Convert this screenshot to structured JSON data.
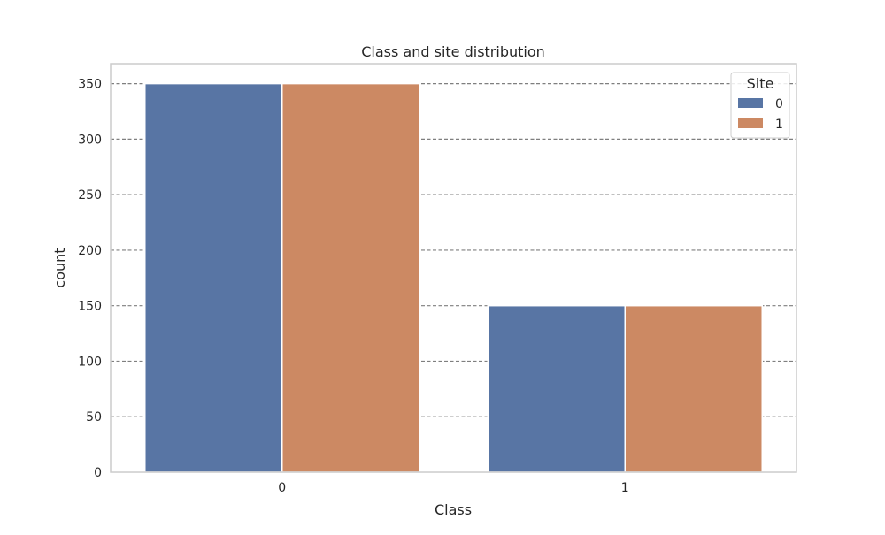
{
  "chart_data": {
    "type": "bar",
    "title": "Class and site distribution",
    "xlabel": "Class",
    "ylabel": "count",
    "categories": [
      "0",
      "1"
    ],
    "series": [
      {
        "name": "0",
        "values": [
          350,
          150
        ],
        "color": "#5875a4"
      },
      {
        "name": "1",
        "values": [
          350,
          150
        ],
        "color": "#cc8963"
      }
    ],
    "ylim": [
      0,
      368
    ],
    "yticks": [
      0,
      50,
      100,
      150,
      200,
      250,
      300,
      350
    ],
    "grid": true,
    "legend": {
      "title": "Site",
      "placement": "top-right"
    }
  }
}
